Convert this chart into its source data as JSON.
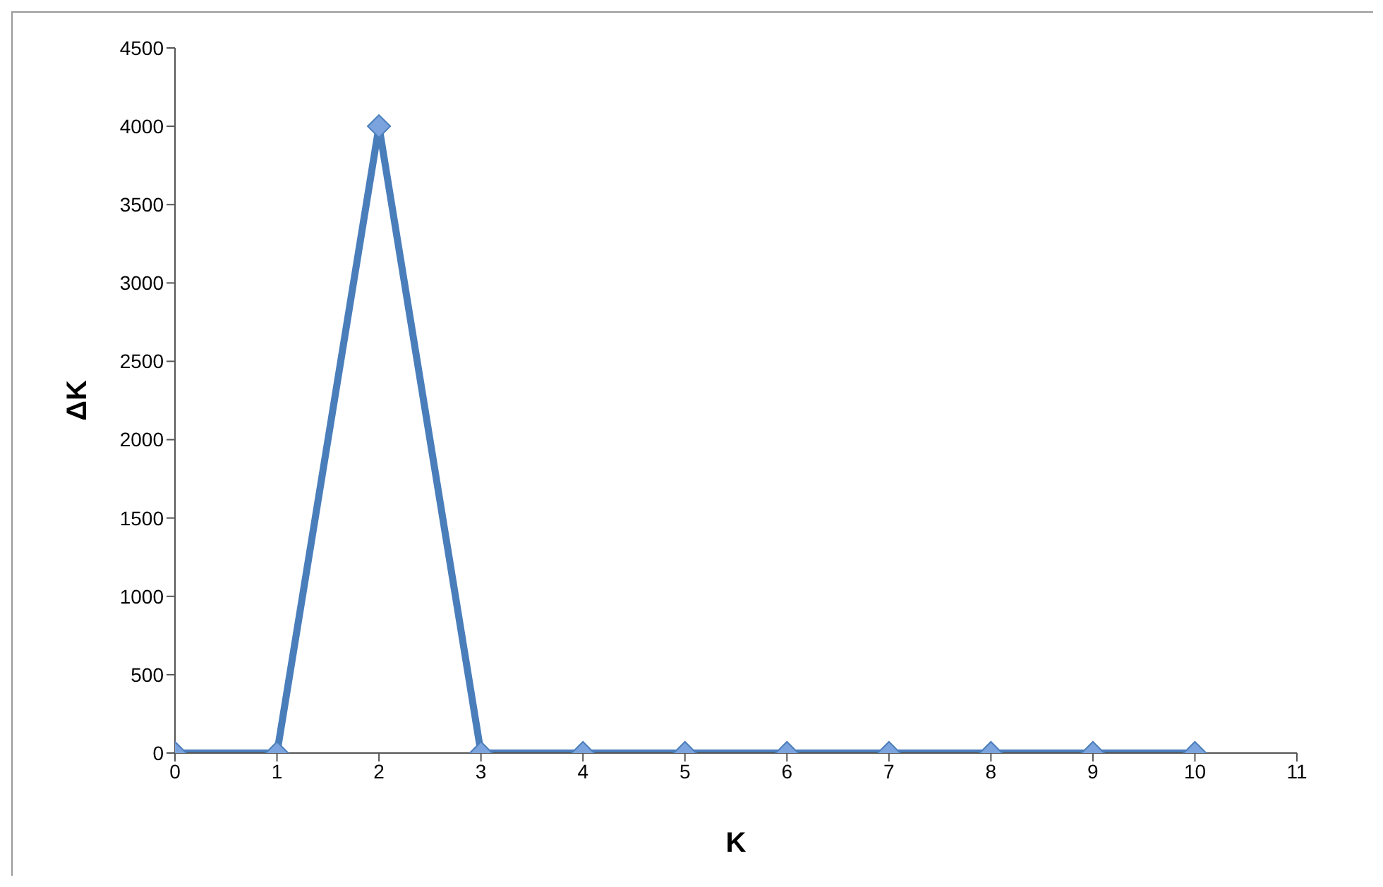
{
  "chart_data": {
    "type": "line",
    "xlabel": "K",
    "ylabel": "ΔK",
    "x": [
      0,
      1,
      2,
      3,
      4,
      5,
      6,
      7,
      8,
      9,
      10
    ],
    "series": [
      {
        "color": "#4a7ebb",
        "values": [
          0,
          0,
          4000,
          0,
          0,
          0,
          0,
          0,
          0,
          0,
          0
        ]
      }
    ],
    "xlim": [
      0,
      11
    ],
    "xticks": [
      0,
      1,
      2,
      3,
      4,
      5,
      6,
      7,
      8,
      9,
      10,
      11
    ],
    "ylim": [
      0,
      4500
    ],
    "yticks": [
      0,
      500,
      1000,
      1500,
      2000,
      2500,
      3000,
      3500,
      4000,
      4500
    ],
    "grid": false,
    "legend": false,
    "marker": "diamond",
    "line_style": "solid"
  }
}
